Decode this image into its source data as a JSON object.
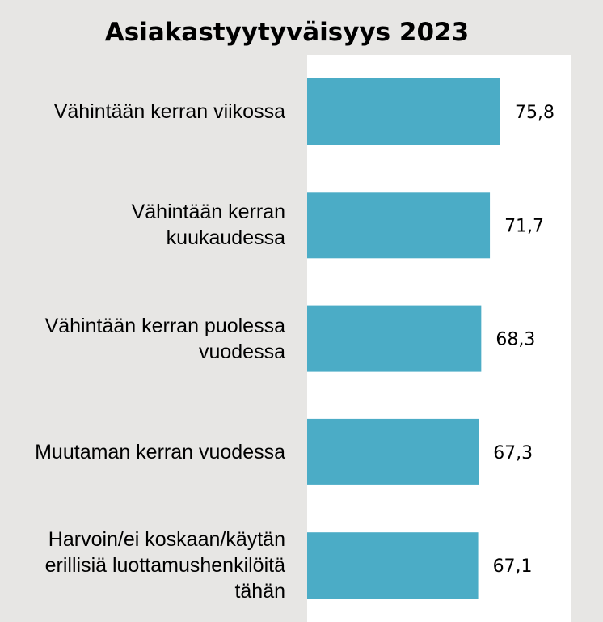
{
  "chart_data": {
    "type": "bar",
    "orientation": "horizontal",
    "title": "Asiakastyytyväisyys 2023",
    "categories": [
      "Vähintään kerran viikossa",
      "Vähintään kerran\nkuukaudessa",
      "Vähintään kerran puolessa\nvuodessa",
      "Muutaman kerran vuodessa",
      "Harvoin/ei koskaan/käytän\nerillisiä luottamushenkilöitä\ntähän"
    ],
    "values": [
      75.8,
      71.7,
      68.3,
      67.3,
      67.1
    ],
    "value_labels": [
      "75,8",
      "71,7",
      "68,3",
      "67,3",
      "67,1"
    ],
    "bar_color": "#4bacc6",
    "grid": false,
    "legend": "none"
  }
}
